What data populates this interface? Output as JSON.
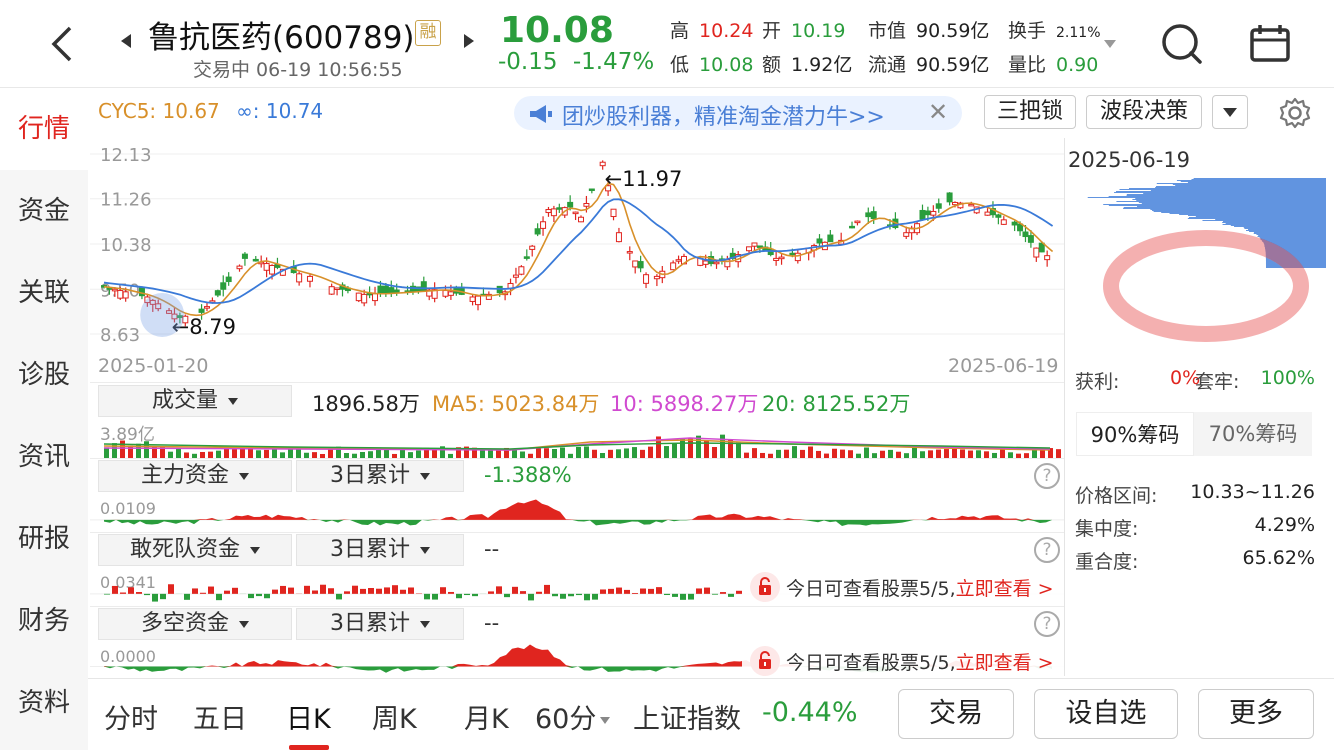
{
  "header": {
    "stock_name": "鲁抗医药(600789)",
    "rong_badge": "融",
    "status": "交易中 06-19 10:56:55",
    "price": "10.08",
    "change_abs": "-0.15",
    "change_pct": "-1.47%",
    "quotes": {
      "high_label": "高",
      "high": "10.24",
      "low_label": "低",
      "low": "10.08",
      "open_label": "开",
      "open": "10.19",
      "amount_label": "额",
      "amount": "1.92亿",
      "mktcap_label": "市值",
      "mktcap": "90.59亿",
      "float_label": "流通",
      "float": "90.59亿",
      "turnover_label": "换手",
      "turnover": "2.11%",
      "volratio_label": "量比",
      "volratio": "0.90"
    },
    "icons": {
      "back": "back-arrow-icon",
      "search": "search-icon",
      "page": "window-icon"
    }
  },
  "nav": {
    "items": [
      "行情",
      "资金",
      "关联",
      "诊股",
      "资讯",
      "研报",
      "财务",
      "资料"
    ],
    "active_index": 0
  },
  "chart_top": {
    "cyc5_label": "CYC5: 10.67",
    "cycinf_label": "∞: 10.74",
    "promo_text": "团炒股利器，精准淘金潜力牛>>",
    "promo_close": "✕",
    "btn_sanba": "三把锁",
    "btn_boduan": "波段决策"
  },
  "kline": {
    "y_ticks": [
      "12.13",
      "11.26",
      "10.38",
      "9.50",
      "8.63"
    ],
    "max_label": "←11.97",
    "min_label": "←8.79",
    "date_start": "2025-01-20",
    "date_end": "2025-06-19"
  },
  "volume": {
    "label": "成交量",
    "value": "1896.58万",
    "ma5": "MA5: 5023.84万",
    "ma10": "10: 5898.27万",
    "ma20": "20: 8125.52万",
    "y_tick": "3.89亿"
  },
  "fund_main": {
    "label": "主力资金",
    "period": "3日累计",
    "value": "-1.388%",
    "y_tick": "0.0109"
  },
  "fund_dsd": {
    "label": "敢死队资金",
    "period": "3日累计",
    "value": "--",
    "y_tick": "0.0341"
  },
  "fund_dk": {
    "label": "多空资金",
    "period": "3日累计",
    "value": "--",
    "y_tick": "0.0000"
  },
  "lock_banner": {
    "text": "今日可查看股票5/5,",
    "link": "立即查看 >"
  },
  "right_panel": {
    "date": "2025-06-19",
    "profit_label": "获利:",
    "profit_value": "0%",
    "trapped_label": "套牢:",
    "trapped_value": "100%",
    "tab_90": "90%筹码",
    "tab_70": "70%筹码",
    "range_label": "价格区间:",
    "range_value": "10.33~11.26",
    "conc_label": "集中度:",
    "conc_value": "4.29%",
    "overlap_label": "重合度:",
    "overlap_value": "65.62%"
  },
  "bottom": {
    "periods": [
      "分时",
      "五日",
      "日K",
      "周K",
      "月K",
      "60分"
    ],
    "active_period": 2,
    "index_name": "上证指数",
    "index_change": "-0.44%",
    "btn_trade": "交易",
    "btn_watch": "设自选",
    "btn_more": "更多"
  },
  "colors": {
    "up": "#e0251f",
    "down": "#2a9d3c",
    "ma_orange": "#d8902a",
    "ma_blue": "#3a7ad8",
    "accent": "#e0251f"
  }
}
